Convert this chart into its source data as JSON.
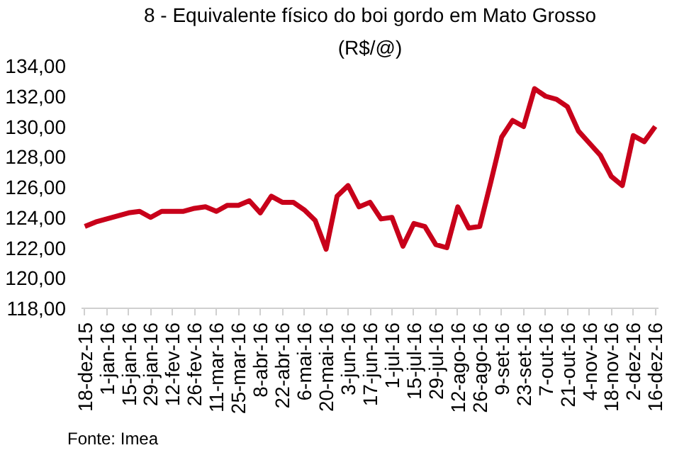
{
  "chart_data": {
    "type": "line",
    "title": "8 - Equivalente físico do boi gordo em Mato Grosso",
    "subtitle": "(R$/@)",
    "categories": [
      "18-dez-15",
      null,
      "1-jan-16",
      null,
      "15-jan-16",
      null,
      "29-jan-16",
      null,
      "12-fev-16",
      null,
      "26-fev-16",
      null,
      "11-mar-16",
      null,
      "25-mar-16",
      null,
      "8-abr-16",
      null,
      "22-abr-16",
      null,
      "6-mai-16",
      null,
      "20-mai-16",
      null,
      "3-jun-16",
      null,
      "17-jun-16",
      null,
      "1-jul-16",
      null,
      "15-jul-16",
      null,
      "29-jul-16",
      null,
      "12-ago-16",
      null,
      "26-ago-16",
      null,
      "9-set-16",
      null,
      "23-set-16",
      null,
      "7-out-16",
      null,
      "21-out-16",
      null,
      "4-nov-16",
      null,
      "18-nov-16",
      null,
      "2-dez-16",
      null,
      "16-dez-16"
    ],
    "series": [
      {
        "color": "#c8001a",
        "values": [
          123.4,
          123.7,
          123.9,
          124.1,
          124.3,
          124.4,
          124.0,
          124.4,
          124.4,
          124.4,
          124.6,
          124.7,
          124.4,
          124.8,
          124.8,
          125.1,
          124.3,
          125.4,
          125.0,
          125.0,
          124.5,
          123.8,
          121.9,
          125.4,
          126.1,
          124.7,
          125.0,
          123.9,
          124.0,
          122.1,
          123.6,
          123.4,
          122.2,
          122.0,
          124.7,
          123.3,
          123.4,
          126.3,
          129.3,
          130.4,
          130.0,
          132.5,
          132.0,
          131.8,
          131.3,
          129.7,
          128.9,
          128.1,
          126.7,
          126.1,
          129.4,
          129.0,
          130.0
        ]
      }
    ],
    "ylim": [
      118,
      134
    ],
    "yticks": [
      {
        "value": 118,
        "label": "118,00"
      },
      {
        "value": 120,
        "label": "120,00"
      },
      {
        "value": 122,
        "label": "122,00"
      },
      {
        "value": 124,
        "label": "124,00"
      },
      {
        "value": 126,
        "label": "126,00"
      },
      {
        "value": 128,
        "label": "128,00"
      },
      {
        "value": 130,
        "label": "130,00"
      },
      {
        "value": 132,
        "label": "132,00"
      },
      {
        "value": 134,
        "label": "134,00"
      }
    ],
    "grid": false,
    "marker": "none",
    "line_style": "solid",
    "annotations": [
      "Fonte: Imea"
    ]
  }
}
